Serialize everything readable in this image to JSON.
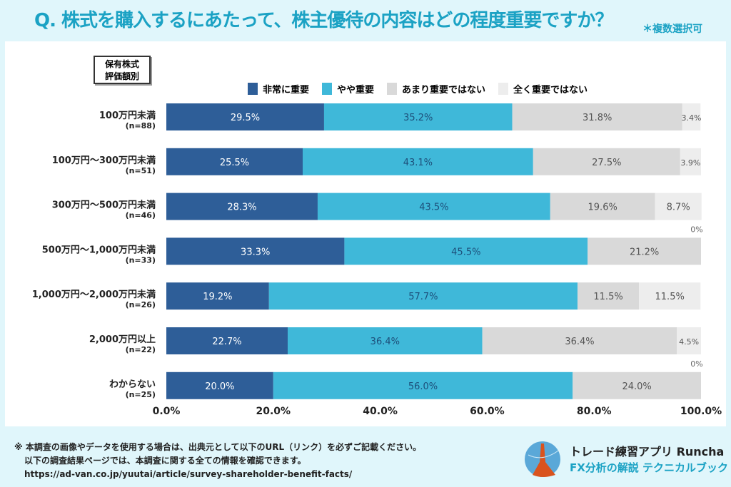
{
  "header": {
    "title": "Q. 株式を購入するにあたって、株主優待の内容はどの程度重要ですか？",
    "note": "＊複数選択可"
  },
  "chart_data": {
    "type": "bar",
    "orientation": "horizontal-stacked",
    "group_label": [
      "保有株式",
      "評価額別"
    ],
    "categories": [
      "100万円未満",
      "100万円～300万円未満",
      "300万円～500万円未満",
      "500万円～1,000万円未満",
      "1,000万円～2,000万円未満",
      "2,000万円以上",
      "わからない"
    ],
    "sample_sizes": [
      "(n=88)",
      "(n=51)",
      "(n=46)",
      "(n=33)",
      "(n=26)",
      "(n=22)",
      "(n=25)"
    ],
    "series": [
      {
        "name": "非常に重要",
        "color": "#2e5e98",
        "values": [
          29.5,
          25.5,
          28.3,
          33.3,
          19.2,
          22.7,
          20.0
        ]
      },
      {
        "name": "やや重要",
        "color": "#3fb8d9",
        "values": [
          35.2,
          43.1,
          43.5,
          45.5,
          57.7,
          36.4,
          56.0
        ]
      },
      {
        "name": "あまり重要ではない",
        "color": "#d9d9d9",
        "values": [
          31.8,
          27.5,
          19.6,
          21.2,
          11.5,
          36.4,
          24.0
        ]
      },
      {
        "name": "全く重要ではない",
        "color": "#ededed",
        "values": [
          3.4,
          3.9,
          8.7,
          0,
          11.5,
          4.5,
          0
        ]
      }
    ],
    "xlim": [
      0,
      100
    ],
    "xticks": [
      "0.0%",
      "20.0%",
      "40.0%",
      "60.0%",
      "80.0%",
      "100.0%"
    ],
    "legend": "top"
  },
  "footer": {
    "line1": "※ 本調査の画像やデータを使用する場合は、出典元として以下のURL（リンク）を必ずご記載ください。",
    "line2": "以下の調査結果ページでは、本調査に関する全ての情報を確認できます。",
    "url": "https://ad-van.co.jp/yuutai/article/survey-shareholder-benefit-facts/"
  },
  "brand": {
    "line1": "トレード練習アプリ Runcha",
    "line2": "FX分析の解説 テクニカルブック"
  }
}
